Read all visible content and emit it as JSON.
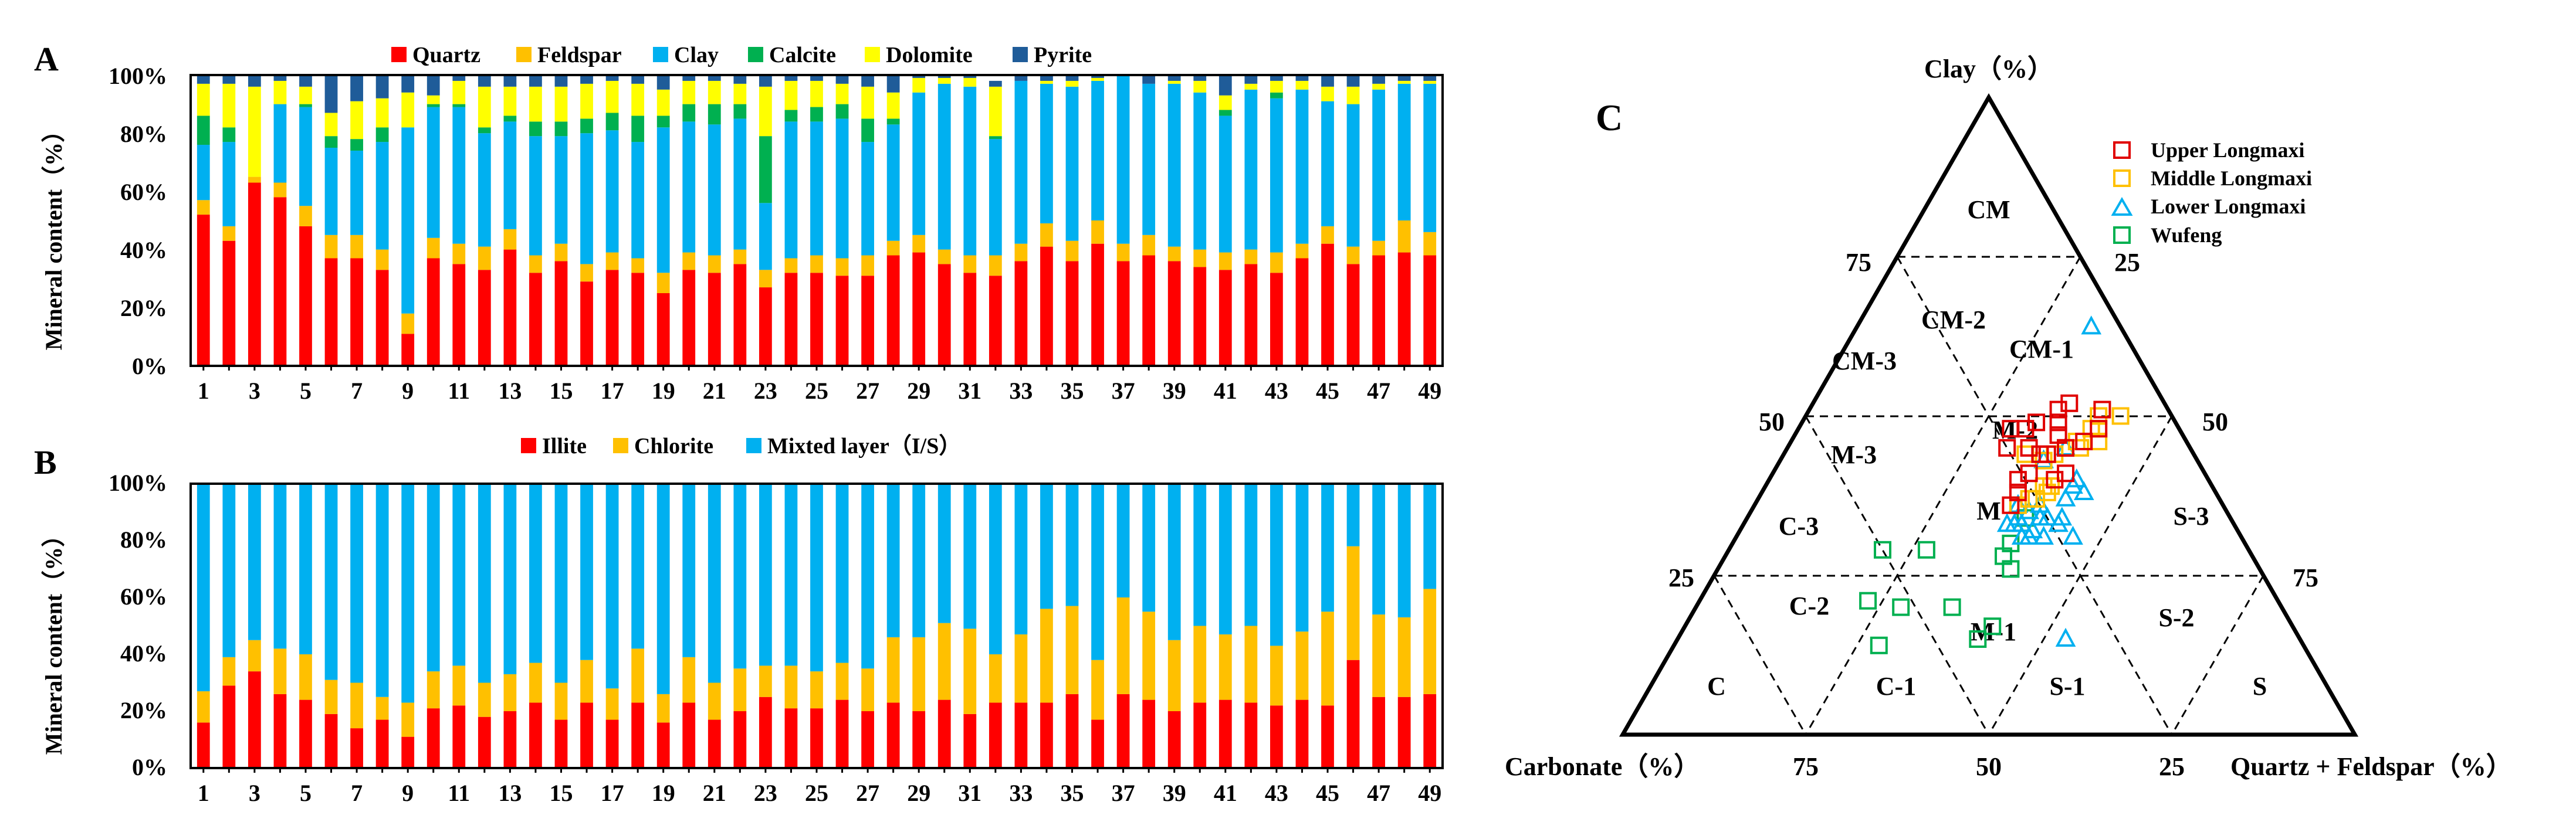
{
  "colors": {
    "quartz": "#ff0000",
    "feldspar": "#ffc000",
    "clay": "#00b0f0",
    "calcite": "#00b050",
    "dolomite": "#ffff00",
    "pyrite": "#1f5c99",
    "illite": "#ff0000",
    "chlorite": "#ffc000",
    "mixed": "#00b0f0",
    "upper": "#e00000",
    "middle": "#ffc000",
    "lower": "#00b0f0",
    "wufeng": "#00b050"
  },
  "chart_data": [
    {
      "panel": "A",
      "type": "bar",
      "stacked": true,
      "ylabel": "Mineral content（%）",
      "yticks": [
        "0%",
        "20%",
        "40%",
        "60%",
        "80%",
        "100%"
      ],
      "ylim": [
        0,
        100
      ],
      "categories": [
        1,
        2,
        3,
        4,
        5,
        6,
        7,
        8,
        9,
        10,
        11,
        12,
        13,
        14,
        15,
        16,
        17,
        18,
        19,
        20,
        21,
        22,
        23,
        24,
        25,
        26,
        27,
        28,
        29,
        30,
        31,
        32,
        33,
        34,
        35,
        36,
        37,
        38,
        39,
        40,
        41,
        42,
        43,
        44,
        45,
        46,
        47,
        48,
        49
      ],
      "xticks": [
        "1",
        "3",
        "5",
        "7",
        "9",
        "11",
        "13",
        "15",
        "17",
        "19",
        "21",
        "23",
        "25",
        "27",
        "29",
        "31",
        "33",
        "35",
        "37",
        "39",
        "41",
        "43",
        "45",
        "47",
        "49"
      ],
      "series": [
        {
          "name": "Quartz",
          "key": "quartz",
          "values": [
            52,
            43,
            63,
            58,
            48,
            37,
            37,
            33,
            11,
            37,
            35,
            33,
            40,
            32,
            36,
            29,
            33,
            32,
            25,
            33,
            32,
            35,
            27,
            32,
            32,
            31,
            31,
            38,
            39,
            35,
            32,
            31,
            36,
            41,
            36,
            42,
            36,
            38,
            36,
            34,
            33,
            35,
            32,
            37,
            42,
            35,
            38,
            39,
            38
          ]
        },
        {
          "name": "Feldspar",
          "key": "feldspar",
          "values": [
            5,
            5,
            2,
            5,
            7,
            8,
            8,
            7,
            7,
            7,
            7,
            8,
            7,
            6,
            6,
            6,
            6,
            5,
            7,
            6,
            6,
            5,
            6,
            5,
            6,
            6,
            7,
            5,
            6,
            5,
            6,
            7,
            6,
            8,
            7,
            8,
            6,
            7,
            5,
            6,
            6,
            5,
            7,
            5,
            6,
            6,
            5,
            11,
            8
          ]
        },
        {
          "name": "Clay",
          "key": "clay",
          "values": [
            19,
            29,
            0,
            27,
            34,
            30,
            29,
            37,
            64,
            45,
            47,
            39,
            37,
            41,
            37,
            45,
            42,
            40,
            50,
            45,
            45,
            45,
            23,
            47,
            46,
            48,
            39,
            40,
            49,
            57,
            58,
            40,
            56,
            48,
            53,
            48,
            58,
            52,
            56,
            54,
            47,
            55,
            53,
            53,
            43,
            49,
            52,
            47,
            51
          ]
        },
        {
          "name": "Calcite",
          "key": "calcite",
          "values": [
            10,
            5,
            0,
            0,
            1,
            4,
            4,
            5,
            0,
            1,
            1,
            2,
            2,
            5,
            5,
            5,
            6,
            9,
            4,
            6,
            7,
            5,
            23,
            4,
            5,
            5,
            8,
            2,
            0,
            0,
            0,
            1,
            0,
            0,
            0,
            0,
            0,
            0,
            0,
            0,
            2,
            0,
            2,
            0,
            0,
            0,
            0,
            0,
            0
          ]
        },
        {
          "name": "Dolomite",
          "key": "dolomite",
          "values": [
            11,
            15,
            31,
            8,
            6,
            8,
            13,
            10,
            12,
            3,
            8,
            14,
            10,
            12,
            12,
            12,
            11,
            11,
            9,
            8,
            8,
            7,
            17,
            10,
            9,
            7,
            11,
            9,
            5,
            2,
            3,
            17,
            0,
            1,
            2,
            1,
            0,
            0,
            1,
            4,
            5,
            2,
            4,
            3,
            5,
            6,
            2,
            1,
            1
          ]
        },
        {
          "name": "Pyrite",
          "key": "pyrite",
          "values": [
            3,
            3,
            4,
            2,
            4,
            13,
            9,
            8,
            6,
            7,
            2,
            4,
            4,
            4,
            4,
            3,
            2,
            3,
            5,
            2,
            2,
            3,
            4,
            2,
            2,
            3,
            4,
            6,
            1,
            1,
            1,
            2,
            2,
            2,
            2,
            1,
            0,
            3,
            2,
            2,
            7,
            3,
            2,
            2,
            4,
            4,
            3,
            2,
            2
          ]
        }
      ]
    },
    {
      "panel": "B",
      "type": "bar",
      "stacked": true,
      "ylabel": "Mineral content（%）",
      "yticks": [
        "0%",
        "20%",
        "40%",
        "60%",
        "80%",
        "100%"
      ],
      "ylim": [
        0,
        100
      ],
      "categories": [
        1,
        2,
        3,
        4,
        5,
        6,
        7,
        8,
        9,
        10,
        11,
        12,
        13,
        14,
        15,
        16,
        17,
        18,
        19,
        20,
        21,
        22,
        23,
        24,
        25,
        26,
        27,
        28,
        29,
        30,
        31,
        32,
        33,
        34,
        35,
        36,
        37,
        38,
        39,
        40,
        41,
        42,
        43,
        44,
        45,
        46,
        47,
        48,
        49
      ],
      "xticks": [
        "1",
        "3",
        "5",
        "7",
        "9",
        "11",
        "13",
        "15",
        "17",
        "19",
        "21",
        "23",
        "25",
        "27",
        "29",
        "31",
        "33",
        "35",
        "37",
        "39",
        "41",
        "43",
        "45",
        "47",
        "49"
      ],
      "series": [
        {
          "name": "Illite",
          "key": "illite",
          "values": [
            16,
            29,
            34,
            26,
            24,
            19,
            14,
            17,
            11,
            21,
            22,
            18,
            20,
            23,
            17,
            23,
            17,
            23,
            16,
            23,
            17,
            20,
            25,
            21,
            21,
            24,
            20,
            23,
            20,
            24,
            19,
            23,
            23,
            23,
            26,
            17,
            26,
            24,
            20,
            23,
            24,
            23,
            22,
            24,
            22,
            38,
            25,
            25,
            26
          ]
        },
        {
          "name": "Chlorite",
          "key": "chlorite",
          "values": [
            11,
            10,
            11,
            16,
            16,
            12,
            16,
            8,
            12,
            13,
            14,
            12,
            13,
            14,
            13,
            15,
            11,
            19,
            10,
            16,
            13,
            15,
            11,
            15,
            13,
            13,
            15,
            23,
            26,
            27,
            30,
            17,
            24,
            33,
            31,
            21,
            34,
            31,
            25,
            27,
            23,
            27,
            21,
            24,
            33,
            40,
            29,
            28,
            37
          ]
        },
        {
          "name": "Mixted layer（I/S）",
          "key": "mixed",
          "values": [
            73,
            61,
            55,
            58,
            60,
            69,
            70,
            75,
            77,
            66,
            64,
            70,
            67,
            63,
            70,
            62,
            72,
            58,
            74,
            61,
            70,
            65,
            64,
            64,
            66,
            63,
            65,
            54,
            54,
            49,
            51,
            60,
            53,
            44,
            43,
            62,
            40,
            45,
            55,
            50,
            53,
            50,
            57,
            52,
            45,
            22,
            46,
            47,
            37
          ]
        }
      ]
    },
    {
      "panel": "C",
      "type": "scatter",
      "subtype": "ternary",
      "labels": {
        "top": "Clay（%）",
        "left": "Carbonate（%）",
        "right": "Quartz + Feldspar（%）"
      },
      "edge_ticks": {
        "left_edge": [
          "75",
          "50",
          "25"
        ],
        "right_edge": [
          "25",
          "50",
          "75"
        ],
        "bottom_edge": [
          "75",
          "50",
          "25"
        ]
      },
      "regions": [
        "CM",
        "CM-2",
        "CM-1",
        "CM-3",
        "M-2",
        "M-3",
        "M",
        "S-3",
        "C-3",
        "C-2",
        "M-1",
        "S-2",
        "C",
        "C-1",
        "S-1",
        "S"
      ],
      "legend": [
        {
          "name": "Upper Longmaxi",
          "key": "upper",
          "marker": "square"
        },
        {
          "name": "Middle Longmaxi",
          "key": "middle",
          "marker": "square"
        },
        {
          "name": "Lower Longmaxi",
          "key": "lower",
          "marker": "triangle"
        },
        {
          "name": "Wufeng",
          "key": "wufeng",
          "marker": "square"
        }
      ],
      "points": {
        "upper": [
          [
            51,
            9
          ],
          [
            48,
            11
          ],
          [
            52,
            13
          ],
          [
            51,
            15
          ],
          [
            49,
            16
          ],
          [
            46,
            14
          ],
          [
            47,
            17
          ],
          [
            45,
            17
          ],
          [
            44,
            20
          ],
          [
            49,
            19
          ],
          [
            45,
            17
          ],
          [
            44,
            21
          ],
          [
            48,
            23
          ],
          [
            45,
            22
          ],
          [
            41,
            19
          ],
          [
            41,
            24
          ],
          [
            38,
            27
          ],
          [
            48,
            21
          ],
          [
            45,
            25
          ],
          [
            36,
            29
          ],
          [
            40,
            26
          ],
          [
            40,
            21
          ]
        ],
        "middle": [
          [
            50,
            7
          ],
          [
            50,
            10
          ],
          [
            48,
            12
          ],
          [
            46,
            12
          ],
          [
            46,
            15
          ],
          [
            45,
            15
          ],
          [
            44,
            19
          ],
          [
            39,
            22
          ],
          [
            43,
            21
          ],
          [
            37,
            25
          ],
          [
            39,
            23
          ],
          [
            37,
            26
          ],
          [
            36,
            28
          ],
          [
            38,
            23
          ],
          [
            44,
            23
          ]
        ],
        "lower": [
          [
            64,
            4
          ],
          [
            45,
            17
          ],
          [
            43,
            21
          ],
          [
            40,
            18
          ],
          [
            38,
            18
          ],
          [
            39,
            19
          ],
          [
            37,
            21
          ],
          [
            36,
            25
          ],
          [
            34,
            23
          ],
          [
            31,
            23
          ],
          [
            33,
            24
          ],
          [
            34,
            26
          ],
          [
            31,
            27
          ],
          [
            32,
            28
          ],
          [
            34,
            29
          ],
          [
            33,
            30
          ],
          [
            33,
            31
          ],
          [
            31,
            30
          ],
          [
            33,
            29
          ],
          [
            31,
            29
          ],
          [
            34,
            25
          ],
          [
            15,
            32
          ],
          [
            36,
            28
          ],
          [
            35,
            27
          ]
        ],
        "wufeng": [
          [
            28,
            34
          ],
          [
            34,
            28
          ],
          [
            30,
            32
          ],
          [
            26,
            34
          ],
          [
            17,
            41
          ],
          [
            20,
            45
          ],
          [
            29,
            44
          ],
          [
            20,
            52
          ],
          [
            29,
            50
          ],
          [
            14,
            58
          ],
          [
            21,
            56
          ],
          [
            15,
            44
          ]
        ]
      }
    }
  ],
  "panel_letters": {
    "a": "A",
    "b": "B",
    "c": "C"
  }
}
